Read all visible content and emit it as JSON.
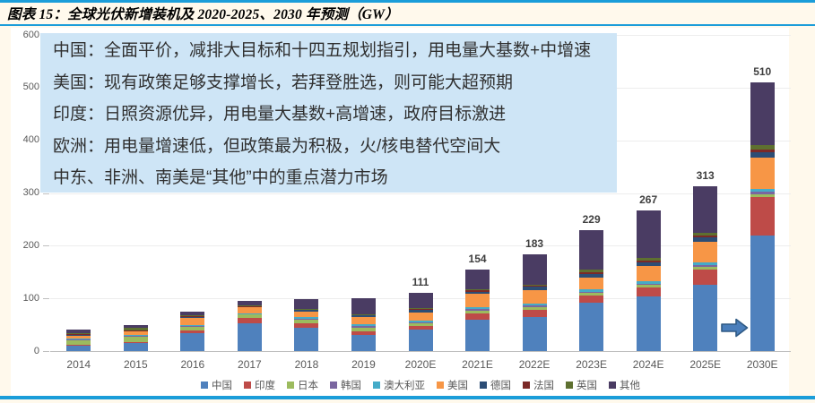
{
  "page": {
    "title": "图表 15：全球光伏新增装机及 2020-2025、2030 年预测（GW）",
    "accent_color": "#1B9DD9",
    "background_color": "#FFF9EC",
    "panel_color": "#FFFFFF"
  },
  "annotation_box": {
    "background_color": "#CEE5F6",
    "lines": [
      "中国：全面平价，减排大目标和十四五规划指引，用电量大基数+中增速",
      "美国：现有政策足够支撑增长，若拜登胜选，则可能大超预期",
      "印度：日照资源优异，用电量大基数+高增速，政府目标激进",
      "欧洲：用电量增速低，但政策最为积极，火/核电替代空间大",
      "中东、非洲、南美是“其他”中的重点潜力市场"
    ]
  },
  "chart_data": {
    "type": "bar",
    "stacked": true,
    "title": "图表 15：全球光伏新增装机及 2020-2025、2030 年预测（GW）",
    "unit": "GW",
    "categories": [
      "2014",
      "2015",
      "2016",
      "2017",
      "2018",
      "2019",
      "2020E",
      "2021E",
      "2022E",
      "2023E",
      "2024E",
      "2025E",
      "2030E"
    ],
    "series": [
      {
        "name": "中国",
        "color": "#4F81BD",
        "values": [
          10.6,
          15.1,
          34.5,
          53.0,
          44.3,
          30.1,
          40,
          60,
          65,
          92,
          103,
          125,
          220
        ]
      },
      {
        "name": "印度",
        "color": "#BE4B48",
        "values": [
          0.9,
          2.0,
          4.0,
          9.6,
          8.3,
          7.3,
          8,
          12,
          13,
          13,
          17,
          30,
          72
        ]
      },
      {
        "name": "日本",
        "color": "#9CBB5E",
        "values": [
          9.7,
          11.0,
          8.6,
          7.0,
          6.5,
          7.0,
          5,
          5,
          5,
          5,
          5,
          5,
          6
        ]
      },
      {
        "name": "韩国",
        "color": "#7A66A0",
        "values": [
          0.9,
          1.0,
          0.9,
          1.2,
          2.0,
          3.1,
          2,
          3,
          3,
          3,
          3,
          4,
          4
        ]
      },
      {
        "name": "澳大利亚",
        "color": "#45ABC8",
        "values": [
          0.9,
          0.9,
          0.8,
          1.3,
          3.8,
          3.7,
          3,
          4,
          4,
          5,
          5,
          5,
          5
        ]
      },
      {
        "name": "美国",
        "color": "#F79646",
        "values": [
          6.2,
          7.3,
          14.8,
          10.6,
          10.6,
          13.3,
          15,
          24,
          26,
          21,
          28,
          38,
          60
        ]
      },
      {
        "name": "德国",
        "color": "#2C4D75",
        "values": [
          1.9,
          1.5,
          1.5,
          1.8,
          3.0,
          3.9,
          5,
          5,
          6,
          7,
          8,
          9,
          10
        ]
      },
      {
        "name": "法国",
        "color": "#7B2927",
        "values": [
          0.9,
          0.9,
          0.6,
          0.9,
          0.9,
          0.9,
          2,
          2,
          2,
          3,
          3,
          3,
          6
        ]
      },
      {
        "name": "英国",
        "color": "#5E7030",
        "values": [
          2.4,
          3.7,
          2.0,
          0.9,
          0.3,
          0.4,
          2,
          2,
          2,
          5,
          5,
          5,
          8
        ]
      },
      {
        "name": "其他",
        "color": "#4A3C63",
        "values": [
          5.6,
          6.6,
          7.3,
          8.7,
          18.3,
          30.3,
          29,
          37,
          57,
          75,
          90,
          89,
          119
        ]
      }
    ],
    "total_labels": [
      "",
      "",
      "",
      "",
      "",
      "",
      "111",
      "154",
      "183",
      "229",
      "267",
      "313",
      "510"
    ],
    "ylim": [
      0,
      600
    ],
    "yticks": [
      0,
      100,
      200,
      300,
      400,
      500,
      600
    ],
    "grid": true,
    "legend_position": "bottom",
    "annotations": [
      {
        "type": "arrow-right",
        "between": [
          "2025E",
          "2030E"
        ]
      }
    ]
  }
}
